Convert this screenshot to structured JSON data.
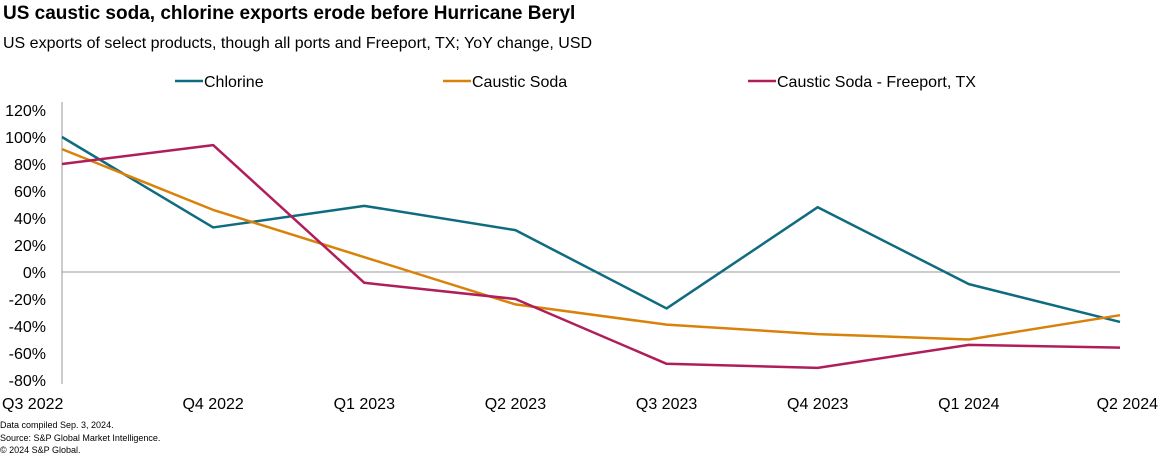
{
  "chart_data": {
    "type": "line",
    "title": "US caustic soda, chlorine exports erode before Hurricane Beryl",
    "subtitle": "US exports of select products, though all ports and Freeport, TX; YoY change, USD",
    "categories": [
      "Q3 2022",
      "Q4 2022",
      "Q1 2023",
      "Q2 2023",
      "Q3 2023",
      "Q4 2023",
      "Q1 2024",
      "Q2 2024"
    ],
    "ylim": [
      -80,
      120
    ],
    "yticks": [
      120,
      100,
      80,
      60,
      40,
      20,
      0,
      -20,
      -40,
      -60,
      -80
    ],
    "ytick_labels": [
      "120%",
      "100%",
      "80%",
      "60%",
      "40%",
      "20%",
      "0%",
      "-20%",
      "-40%",
      "-60%",
      "-80%"
    ],
    "legend_position": "top",
    "grid": false,
    "series": [
      {
        "name": "Chlorine",
        "color": "#0f6b80",
        "values": [
          100,
          33,
          49,
          31,
          -27,
          48,
          -9,
          -37
        ]
      },
      {
        "name": "Caustic Soda",
        "color": "#d9820a",
        "values": [
          91,
          46,
          11,
          -24,
          -39,
          -46,
          -50,
          -32
        ]
      },
      {
        "name": "Caustic Soda - Freeport, TX",
        "color": "#b01e5a",
        "values": [
          80,
          94,
          -8,
          -20,
          -68,
          -71,
          -54,
          -56
        ]
      }
    ]
  },
  "footer": [
    "Data compiled Sep. 3, 2024.",
    "Source: S&P Global Market Intelligence.",
    "© 2024 S&P Global."
  ]
}
